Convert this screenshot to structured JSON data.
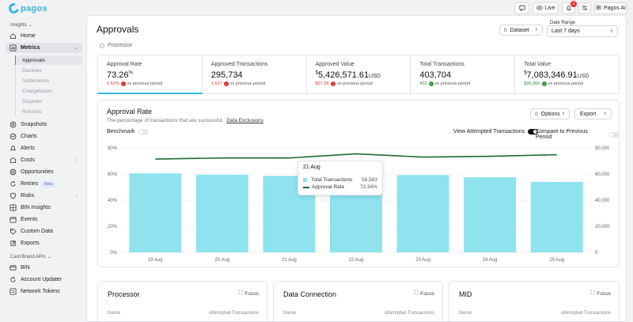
{
  "brand": {
    "name": "pagos",
    "accent": "#35b7e4"
  },
  "topbar": {
    "live_label": "Live",
    "notifications_count": "2",
    "ai_label": "Pagos AI"
  },
  "sidebar": {
    "insights_label": "Insights",
    "items": [
      {
        "label": "Home",
        "icon": "home-icon"
      },
      {
        "label": "Metrics",
        "icon": "chart-icon",
        "active": true
      },
      {
        "label": "Snapshots",
        "icon": "camera-icon"
      },
      {
        "label": "Charts",
        "icon": "chart-line-icon"
      },
      {
        "label": "Alerts",
        "icon": "bell-icon"
      },
      {
        "label": "Costs",
        "icon": "dollar-icon"
      },
      {
        "label": "Opportunities",
        "icon": "target-icon"
      },
      {
        "label": "Retries",
        "icon": "refresh-icon",
        "badge": "Beta"
      },
      {
        "label": "Risks",
        "icon": "shield-icon"
      },
      {
        "label": "BIN Insights",
        "icon": "grid-icon"
      },
      {
        "label": "Events",
        "icon": "calendar-icon"
      },
      {
        "label": "Custom Data",
        "icon": "tag-icon"
      },
      {
        "label": "Exports",
        "icon": "export-icon"
      }
    ],
    "metrics_sub": [
      "Approvals",
      "Declines",
      "Settlements",
      "Chargebacks",
      "Disputes",
      "Refunds"
    ],
    "card_brand_label": "Card Brand APIs",
    "card_brand_items": [
      "BIN",
      "Account Updater",
      "Network Tokens"
    ]
  },
  "header": {
    "title": "Approvals",
    "filter": "Processor",
    "dataset_count": "0",
    "dataset_label": "Dataset",
    "date_range_label": "Date Range",
    "date_range_value": "Last 7 days"
  },
  "kpis": [
    {
      "title": "Approval Rate",
      "value": "73.26",
      "unit": "%",
      "change": "0.62%",
      "dir": "neg",
      "suffix": "vs previous period"
    },
    {
      "title": "Approved Transactions",
      "value": "295,734",
      "unit": "",
      "change": "1,527",
      "dir": "neg",
      "suffix": "vs previous period"
    },
    {
      "title": "Approved Value",
      "prefix": "$",
      "value": "5,426,571.61",
      "unit": "USD",
      "change": "$27.2K",
      "dir": "neg",
      "suffix": "vs previous period"
    },
    {
      "title": "Total Transactions",
      "value": "403,704",
      "unit": "",
      "change": "433",
      "dir": "pos",
      "suffix": "vs previous period"
    },
    {
      "title": "Total Value",
      "prefix": "$",
      "value": "7,083,346.91",
      "unit": "USD",
      "change": "$26.36K",
      "dir": "pos",
      "suffix": "vs previous period"
    }
  ],
  "chart_card": {
    "title": "Approval Rate",
    "subtitle": "The percentage of transactions that are successful.",
    "link": "Data Exclusions",
    "options_count": "0",
    "options_label": "Options",
    "export_label": "Export",
    "benchmark_label": "Benchmark",
    "view_attempted_label": "View Attempted Transactions",
    "compare_label": "Compare to Previous Period"
  },
  "chart_data": {
    "type": "bar",
    "categories": [
      "19 Aug",
      "20 Aug",
      "21 Aug",
      "22 Aug",
      "23 Aug",
      "24 Aug",
      "25 Aug"
    ],
    "y_left_ticks": [
      "0%",
      "20%",
      "40%",
      "60%",
      "80%"
    ],
    "y_right_ticks": [
      "0",
      "20,000",
      "40,000",
      "60,000",
      "80,000"
    ],
    "ylim_left": [
      0,
      80
    ],
    "ylim_right": [
      0,
      80000
    ],
    "grid": true,
    "series": [
      {
        "name": "Total Transactions",
        "axis": "right",
        "color": "#8ee3ef",
        "values": [
          60500,
          59500,
          58583,
          59000,
          59200,
          57500,
          54000
        ]
      },
      {
        "name": "Approval Rate",
        "axis": "left",
        "color": "#1f6b35",
        "values": [
          71.5,
          72.3,
          72.34,
          75.5,
          73.0,
          73.6,
          74.8
        ]
      }
    ]
  },
  "tooltip": {
    "date": "21 Aug",
    "rows": [
      {
        "label": "Total Transactions",
        "value": "58,583"
      },
      {
        "label": "Approval Rate",
        "value": "72.34%"
      }
    ]
  },
  "bottom_cards": [
    {
      "title": "Processor",
      "focus": "Focus",
      "col1": "Name",
      "col2": "Attempted Transactions"
    },
    {
      "title": "Data Connection",
      "focus": "Focus",
      "col1": "Name",
      "col2": "Attempted Transactions"
    },
    {
      "title": "MID",
      "focus": "Focus",
      "col1": "Name",
      "col2": "Attempted Transactions"
    }
  ]
}
